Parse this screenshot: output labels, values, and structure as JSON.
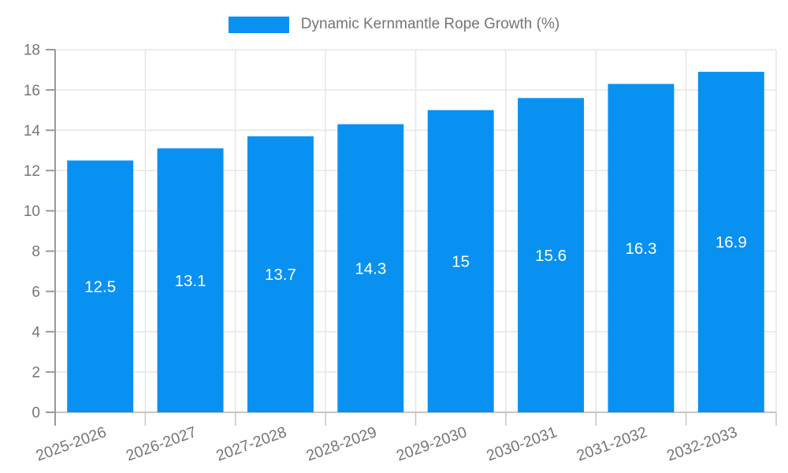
{
  "legend": {
    "label": "Dynamic Kernmantle Rope Growth (%)"
  },
  "colors": {
    "bar": "#0991f2",
    "axis_text": "#757575",
    "grid": "#e6e6e6",
    "axis_line": "#9a9a9a",
    "baseline": "#c6c6c6",
    "value_label": "#ffffff",
    "background": "#ffffff"
  },
  "chart_data": {
    "type": "bar",
    "title": "Dynamic Kernmantle Rope Growth (%)",
    "categories": [
      "2025-2026",
      "2026-2027",
      "2027-2028",
      "2028-2029",
      "2029-2030",
      "2030-2031",
      "2031-2032",
      "2032-2033"
    ],
    "values": [
      12.5,
      13.1,
      13.7,
      14.3,
      15,
      15.6,
      16.3,
      16.9
    ],
    "value_labels": [
      "12.5",
      "13.1",
      "13.7",
      "14.3",
      "15",
      "15.6",
      "16.3",
      "16.9"
    ],
    "xlabel": "",
    "ylabel": "",
    "ylim": [
      0,
      18
    ],
    "ytick_step": 2,
    "grid": true,
    "legend_position": "top-center",
    "value_label_position": "inside-middle",
    "x_label_rotation": -20
  }
}
